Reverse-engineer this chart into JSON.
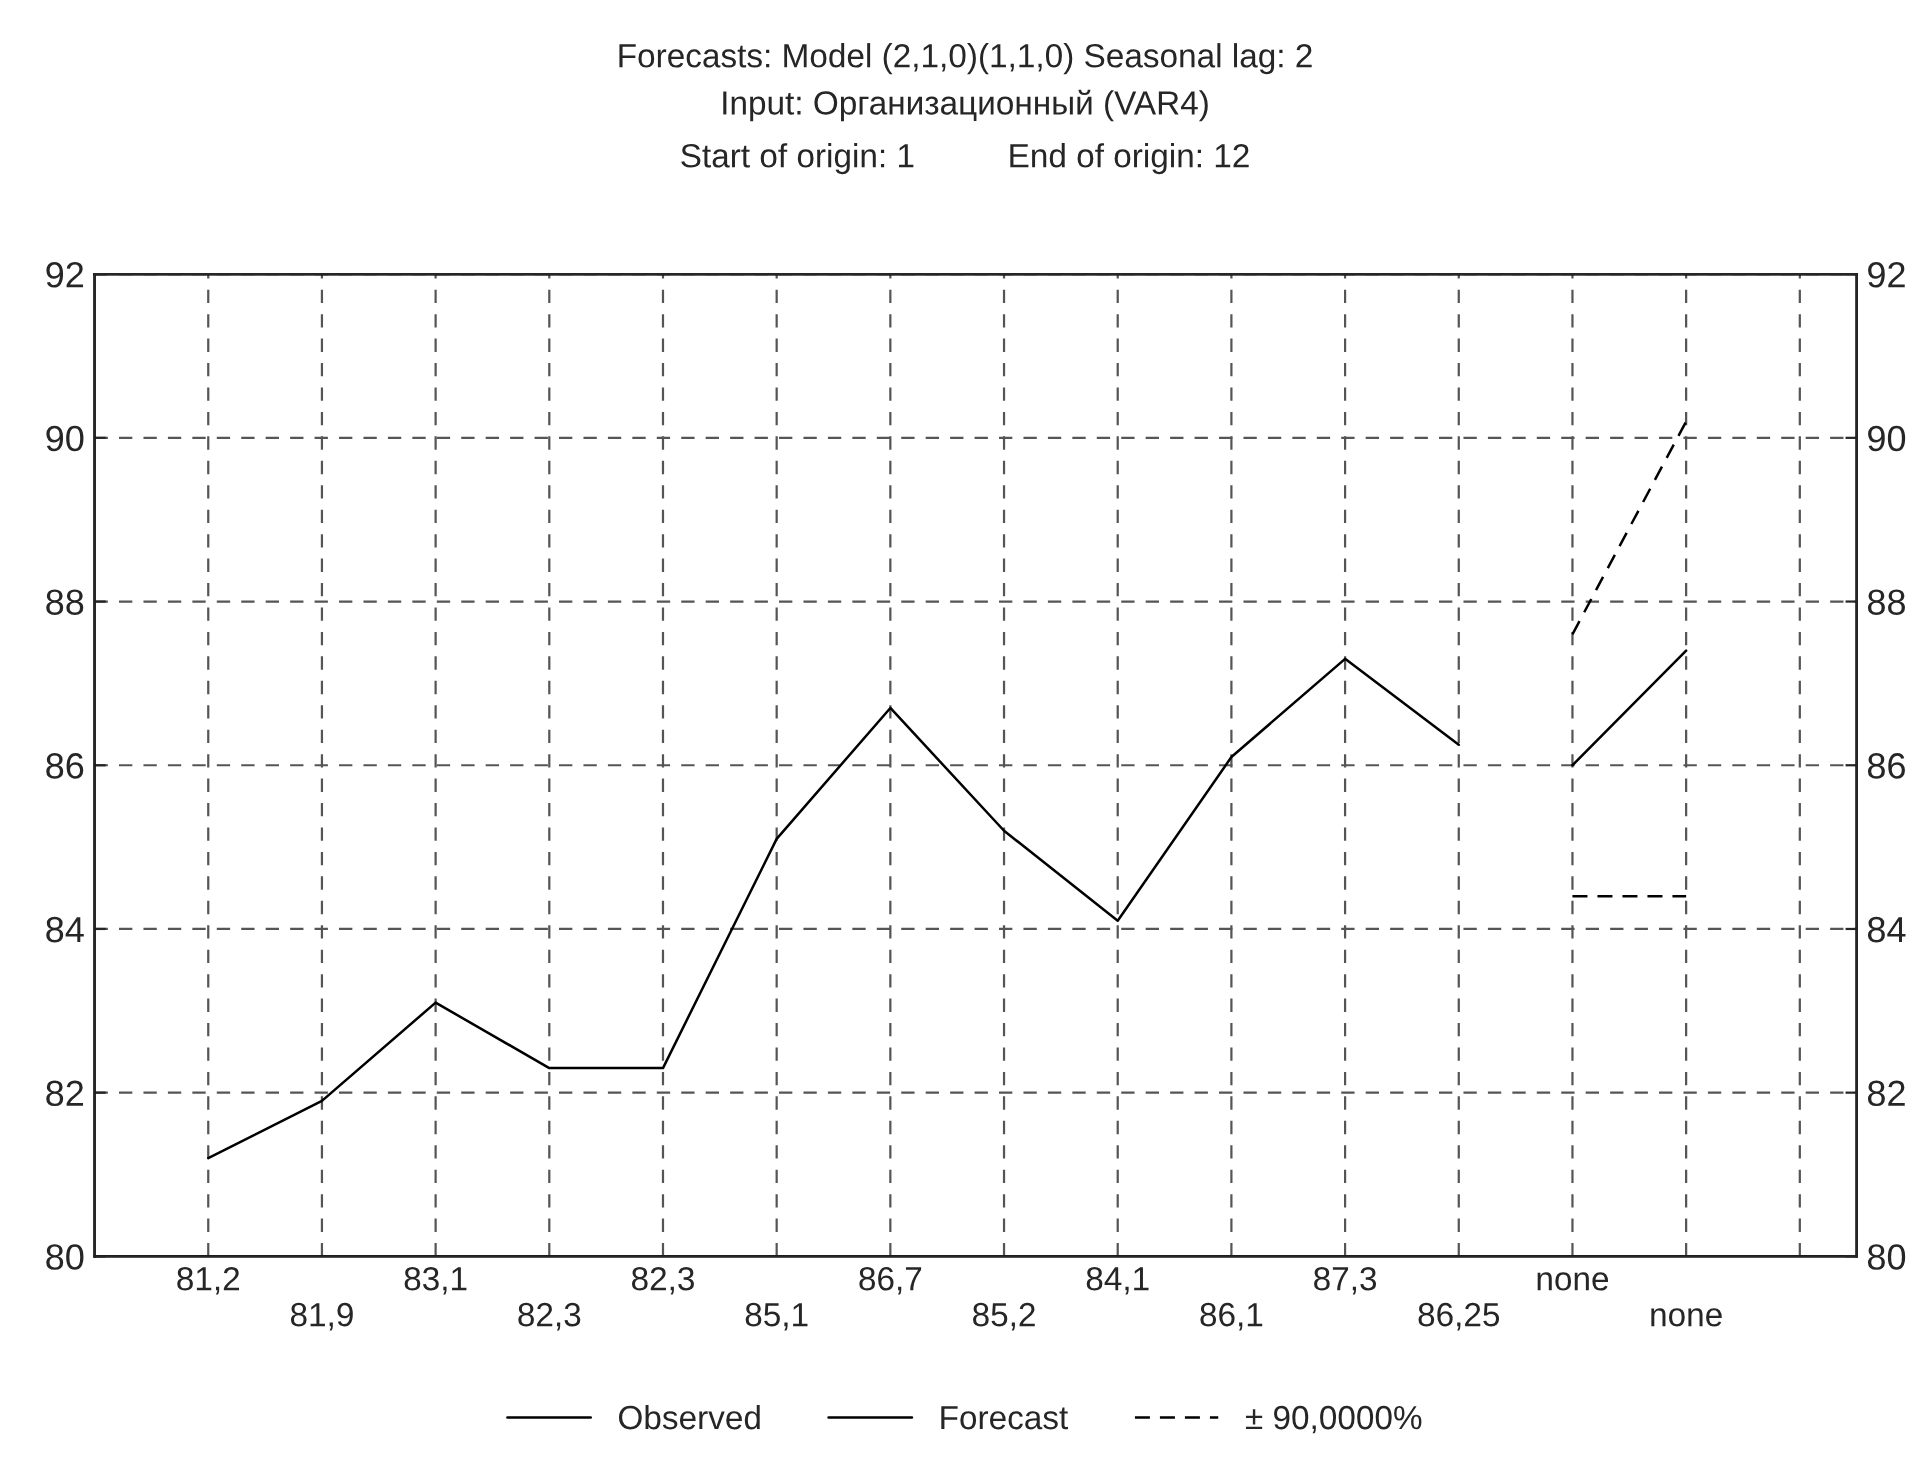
{
  "chart_data": {
    "type": "line",
    "title": "Forecasts: Model (2,1,0)(1,1,0) Seasonal lag: 2",
    "subtitle": "Input: Организационный (VAR4)\nStart of origin: 1          End of origin: 12",
    "categories": [
      "81,2",
      "81,9",
      "83,1",
      "82,3",
      "82,3",
      "85,1",
      "86,7",
      "85,2",
      "84,1",
      "86,1",
      "87,3",
      "86,25",
      "none",
      "none",
      null
    ],
    "series": [
      {
        "name": "Observed",
        "color": "#000000",
        "values": [
          81.2,
          81.9,
          83.1,
          82.3,
          82.3,
          85.1,
          86.7,
          85.2,
          84.1,
          86.1,
          87.3,
          86.25,
          null,
          null,
          null
        ]
      },
      {
        "name": "Forecast",
        "color": "#000000",
        "values": [
          null,
          null,
          null,
          null,
          null,
          null,
          null,
          null,
          null,
          null,
          null,
          null,
          86.0,
          87.4,
          null
        ]
      },
      {
        "name": "± 90,0000%",
        "color": "#000000",
        "line_style": "dashed",
        "values": [
          null,
          null,
          null,
          null,
          null,
          null,
          null,
          null,
          null,
          null,
          null,
          null,
          87.6,
          90.2,
          null
        ]
      },
      {
        "color": "#000000",
        "line_style": "dashed",
        "values": [
          null,
          null,
          null,
          null,
          null,
          null,
          null,
          null,
          null,
          null,
          null,
          null,
          84.4,
          84.4,
          null
        ]
      }
    ],
    "ylim": [
      80,
      92
    ],
    "yticks": [
      80,
      82,
      84,
      86,
      88,
      90,
      92
    ],
    "y2lim": [
      80,
      92
    ],
    "y2ticks": [
      80,
      82,
      84,
      86,
      88,
      90,
      92
    ],
    "grid": true,
    "legend": "bottom",
    "marker": "none"
  }
}
